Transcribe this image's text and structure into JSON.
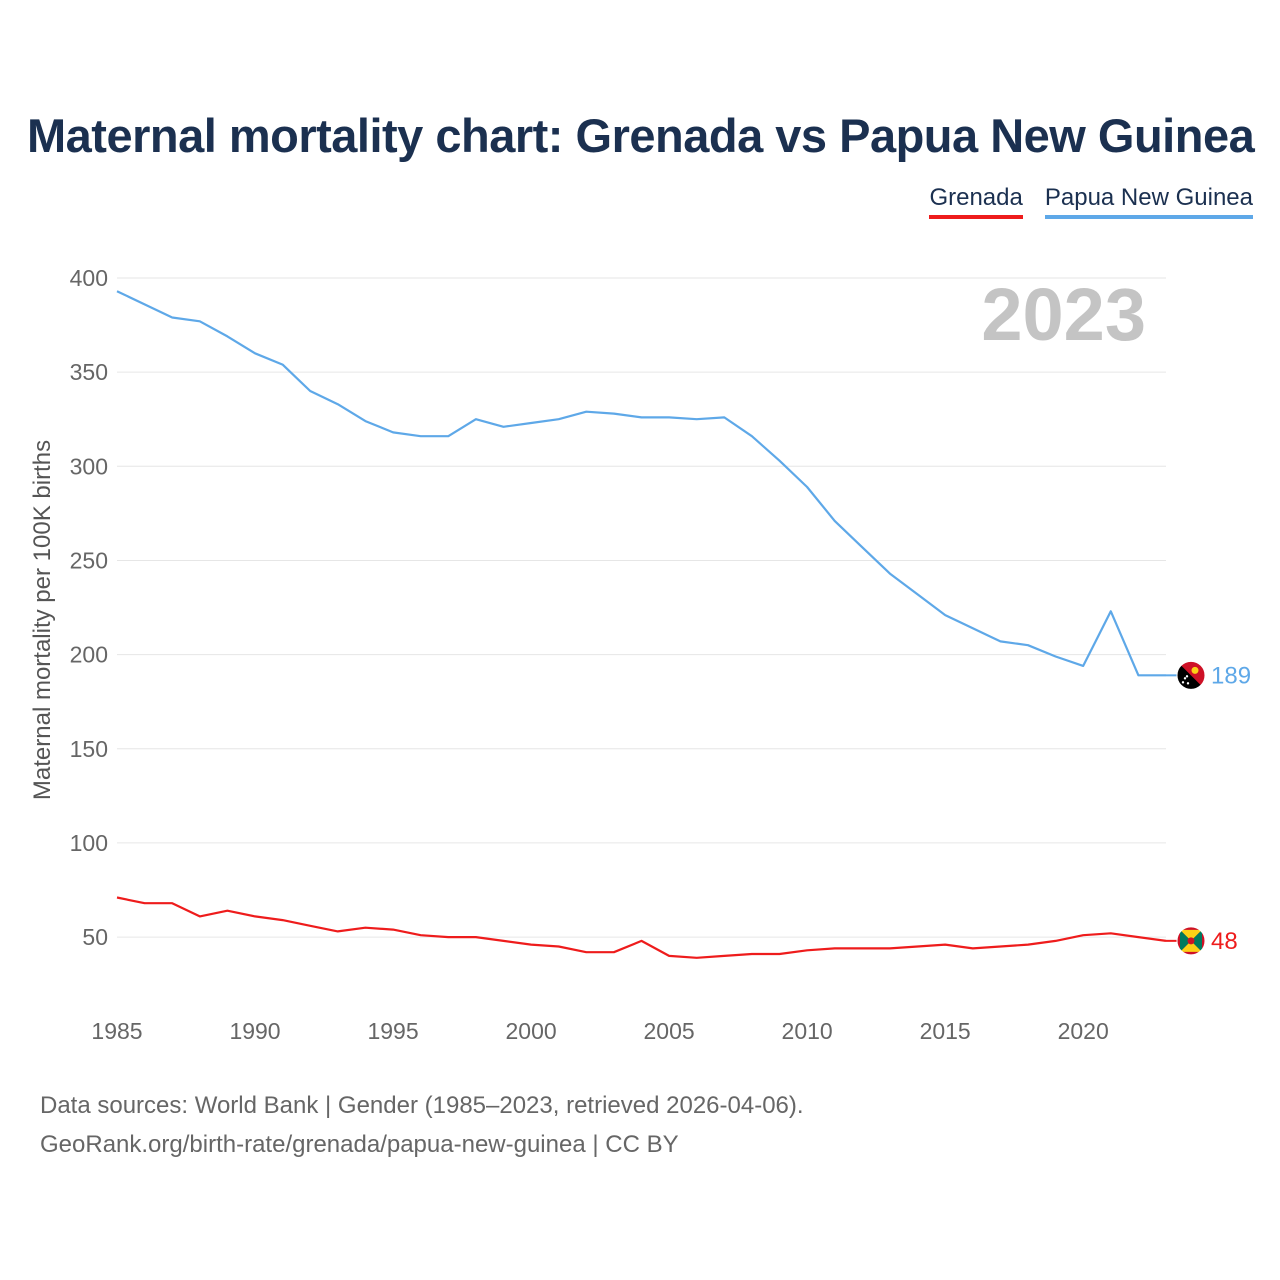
{
  "title": "Maternal mortality chart: Grenada vs Papua New Guinea",
  "legend": [
    {
      "name": "Grenada",
      "color": "#ee1c1c"
    },
    {
      "name": "Papua New Guinea",
      "color": "#5ea8e8"
    }
  ],
  "year_label": "2023",
  "footer": {
    "line1": "Data sources: World Bank | Gender (1985–2023, retrieved 2026-04-06).",
    "line2": "GeoRank.org/birth-rate/grenada/papua-new-guinea | CC BY"
  },
  "chart_data": {
    "type": "line",
    "title": "Maternal mortality chart: Grenada vs Papua New Guinea",
    "xlabel": "",
    "ylabel": "Maternal mortality per 100K births",
    "xlim": [
      1985,
      2023
    ],
    "ylim": [
      15,
      400
    ],
    "x_ticks": [
      1985,
      1990,
      1995,
      2000,
      2005,
      2010,
      2015,
      2020
    ],
    "y_ticks": [
      50,
      100,
      150,
      200,
      250,
      300,
      350,
      400
    ],
    "grid": true,
    "x": [
      1985,
      1986,
      1987,
      1988,
      1989,
      1990,
      1991,
      1992,
      1993,
      1994,
      1995,
      1996,
      1997,
      1998,
      1999,
      2000,
      2001,
      2002,
      2003,
      2004,
      2005,
      2006,
      2007,
      2008,
      2009,
      2010,
      2011,
      2012,
      2013,
      2014,
      2015,
      2016,
      2017,
      2018,
      2019,
      2020,
      2021,
      2022,
      2023
    ],
    "series": [
      {
        "name": "Grenada",
        "color": "#ee1c1c",
        "end_label": "48",
        "flag": "grenada-flag",
        "values": [
          71,
          68,
          68,
          61,
          64,
          61,
          59,
          56,
          53,
          55,
          54,
          51,
          50,
          50,
          48,
          46,
          45,
          42,
          42,
          48,
          40,
          39,
          40,
          41,
          41,
          43,
          44,
          44,
          44,
          45,
          46,
          44,
          45,
          46,
          48,
          51,
          52,
          50,
          48
        ]
      },
      {
        "name": "Papua New Guinea",
        "color": "#5ea8e8",
        "end_label": "189",
        "flag": "png-flag",
        "values": [
          393,
          386,
          379,
          377,
          369,
          360,
          354,
          340,
          333,
          324,
          318,
          316,
          316,
          325,
          321,
          323,
          325,
          329,
          328,
          326,
          326,
          325,
          326,
          316,
          303,
          289,
          271,
          257,
          243,
          232,
          221,
          214,
          207,
          205,
          199,
          194,
          223,
          189,
          189
        ]
      }
    ]
  }
}
